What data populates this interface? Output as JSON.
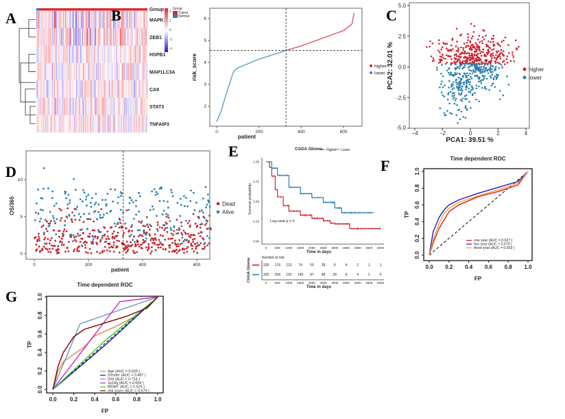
{
  "panels": {
    "A": {
      "label": "A",
      "type": "heatmap",
      "genes": [
        "MAPK1",
        "ZEB1",
        "HSPB1",
        "MAP1LC3A",
        "CA9",
        "STAT3",
        "TNFAIP3"
      ],
      "annotation_label": "Group",
      "legend_title": "Group",
      "legend_items": [
        {
          "name": "Tumor",
          "color": "#e0262b"
        },
        {
          "name": "Normal",
          "color": "#2b7bb5"
        }
      ],
      "colorbar_ticks": [
        "4",
        "2",
        "0",
        "-2",
        "-4"
      ],
      "colors": {
        "high": "#e8262b",
        "mid": "#ffffff",
        "low": "#1b1bd8"
      }
    },
    "B": {
      "label": "B",
      "type": "line",
      "xlabel": "patient",
      "ylabel": "risk_score",
      "xticks": [
        "0",
        "200",
        "400",
        "600"
      ],
      "yticks": [
        "2",
        "3",
        "4",
        "5",
        "6"
      ],
      "xlim": [
        -25,
        680
      ],
      "ylim": [
        1.0,
        6.5
      ],
      "cutoff_x": 328,
      "cutoff_y": 4.55,
      "curve": [
        [
          0,
          1.3
        ],
        [
          20,
          1.75
        ],
        [
          40,
          2.4
        ],
        [
          60,
          3.0
        ],
        [
          80,
          3.6
        ],
        [
          100,
          3.75
        ],
        [
          150,
          3.95
        ],
        [
          200,
          4.15
        ],
        [
          250,
          4.3
        ],
        [
          328,
          4.55
        ],
        [
          400,
          4.75
        ],
        [
          500,
          5.1
        ],
        [
          600,
          5.45
        ],
        [
          640,
          5.75
        ],
        [
          650,
          6.25
        ]
      ],
      "legend": [
        {
          "name": "higher",
          "color": "#c8282e"
        },
        {
          "name": "lower",
          "color": "#2c7fb0"
        }
      ]
    },
    "C": {
      "label": "C",
      "type": "scatter",
      "xlabel": "PCA1: 39.51 %",
      "ylabel": "PCA2: 32.01 %",
      "xticks": [
        "-4",
        "-2",
        "0",
        "2",
        "4"
      ],
      "yticks": [
        "5.0",
        "2.5",
        "0.0",
        "-2.5",
        "-5.0"
      ],
      "xlim": [
        -4.3,
        4.3
      ],
      "ylim": [
        -5,
        5
      ],
      "legend": [
        {
          "name": "higher",
          "color": "#d0202a"
        },
        {
          "name": "lower",
          "color": "#2a7fae"
        }
      ]
    },
    "D": {
      "label": "D",
      "type": "scatter",
      "xlabel": "patient",
      "ylabel": "OS/365",
      "xticks": [
        "0",
        "200",
        "400",
        "600"
      ],
      "yticks": [
        "0",
        "5",
        "10"
      ],
      "xlim": [
        -20,
        680
      ],
      "ylim": [
        -0.5,
        14
      ],
      "cutoff_x": 328,
      "legend": [
        {
          "name": "Dead",
          "color": "#cc2027"
        },
        {
          "name": "Alive",
          "color": "#2a80b0"
        }
      ]
    },
    "E": {
      "label": "E",
      "type": "line",
      "title": "CGGA Glioma",
      "xlabel": "Time in days",
      "ylabel": "Survival probability",
      "xticks": [
        "0",
        "500",
        "1000",
        "1500",
        "2000",
        "2500",
        "3000",
        "3500",
        "4000",
        "4500",
        "5000"
      ],
      "yticks": [
        "0.00",
        "0.25",
        "0.50",
        "0.75",
        "1.00"
      ],
      "xlim": [
        0,
        5000
      ],
      "ylim": [
        0,
        1
      ],
      "annotation": "Log-rank p = 0",
      "series": [
        {
          "name": "Higher",
          "color": "#d0202a",
          "points": [
            [
              0,
              1
            ],
            [
              150,
              0.93
            ],
            [
              250,
              0.82
            ],
            [
              400,
              0.65
            ],
            [
              500,
              0.56
            ],
            [
              750,
              0.45
            ],
            [
              1000,
              0.38
            ],
            [
              1500,
              0.33
            ],
            [
              2000,
              0.29
            ],
            [
              2500,
              0.26
            ],
            [
              2800,
              0.23
            ],
            [
              3000,
              0.22
            ],
            [
              3650,
              0.22
            ],
            [
              3650,
              0.16
            ],
            [
              5000,
              0.16
            ]
          ]
        },
        {
          "name": "Lower",
          "color": "#2c7fb0",
          "points": [
            [
              0,
              1
            ],
            [
              250,
              0.92
            ],
            [
              500,
              0.83
            ],
            [
              1000,
              0.68
            ],
            [
              1500,
              0.6
            ],
            [
              2000,
              0.55
            ],
            [
              2500,
              0.49
            ],
            [
              3000,
              0.42
            ],
            [
              3300,
              0.36
            ],
            [
              4700,
              0.36
            ]
          ]
        }
      ],
      "risk_table": {
        "title": "Number at risk",
        "strata_label": "CGGA Glioma",
        "rows": [
          [
            328,
            176,
            113,
            74,
            53,
            28,
            9,
            4,
            2,
            1,
            1
          ],
          [
            329,
            258,
            192,
            149,
            97,
            68,
            28,
            9,
            4,
            2,
            0
          ]
        ]
      }
    },
    "F": {
      "label": "F",
      "type": "line",
      "title": "Time dependent ROC",
      "xlabel": "FP",
      "ylabel": "TP",
      "xticks": [
        "0.0",
        "0.2",
        "0.4",
        "0.6",
        "0.8",
        "1.0"
      ],
      "yticks": [
        "0.0",
        "0.2",
        "0.4",
        "0.6",
        "0.8",
        "1.0"
      ],
      "series": [
        {
          "name": "one year  (AUC = 0.627 )",
          "color": "#e01a1a",
          "points": [
            [
              0,
              0
            ],
            [
              0.05,
              0.18
            ],
            [
              0.1,
              0.32
            ],
            [
              0.15,
              0.42
            ],
            [
              0.2,
              0.52
            ],
            [
              0.3,
              0.6
            ],
            [
              0.5,
              0.7
            ],
            [
              0.7,
              0.76
            ],
            [
              0.9,
              0.84
            ],
            [
              1,
              1
            ]
          ]
        },
        {
          "name": "two year  (AUC = 0.679 )",
          "color": "#1a1ac0",
          "points": [
            [
              0,
              0
            ],
            [
              0.04,
              0.28
            ],
            [
              0.1,
              0.45
            ],
            [
              0.15,
              0.54
            ],
            [
              0.2,
              0.6
            ],
            [
              0.3,
              0.66
            ],
            [
              0.5,
              0.74
            ],
            [
              0.7,
              0.81
            ],
            [
              0.9,
              0.88
            ],
            [
              1,
              1
            ]
          ]
        },
        {
          "name": "three year  (AUC = 0.653 )",
          "color": "#f0a030",
          "points": [
            [
              0,
              0
            ],
            [
              0.05,
              0.22
            ],
            [
              0.1,
              0.38
            ],
            [
              0.15,
              0.5
            ],
            [
              0.2,
              0.56
            ],
            [
              0.3,
              0.63
            ],
            [
              0.5,
              0.71
            ],
            [
              0.7,
              0.78
            ],
            [
              0.9,
              0.86
            ],
            [
              1,
              1
            ]
          ]
        }
      ]
    },
    "G": {
      "label": "G",
      "type": "line",
      "title": "Time dependent ROC",
      "xlabel": "FP",
      "ylabel": "TP",
      "xticks": [
        "0.0",
        "0.2",
        "0.4",
        "0.6",
        "0.8",
        "1.0"
      ],
      "yticks": [
        "0.0",
        "0.2",
        "0.4",
        "0.6",
        "0.8",
        "1.0"
      ],
      "series": [
        {
          "name": "Age  (AUC = 0.626 )",
          "color": "#e08a3a",
          "points": [
            [
              0,
              0
            ],
            [
              0.05,
              0.2
            ],
            [
              0.1,
              0.3
            ],
            [
              0.2,
              0.38
            ],
            [
              0.3,
              0.46
            ],
            [
              0.4,
              0.58
            ],
            [
              0.6,
              0.68
            ],
            [
              0.8,
              0.8
            ],
            [
              1,
              1
            ]
          ]
        },
        {
          "name": "Gender  (AUC = 0.487 )",
          "color": "#1a1aa0",
          "points": [
            [
              0,
              0
            ],
            [
              0.5,
              0.48
            ],
            [
              1,
              1
            ]
          ]
        },
        {
          "name": "IDH  (AUC = 0.724 )",
          "color": "#6a98b8",
          "points": [
            [
              0,
              0
            ],
            [
              0.26,
              0.71
            ],
            [
              1,
              1
            ]
          ]
        },
        {
          "name": "1p19q  (AUC = 0.654 )",
          "color": "#d020d0",
          "points": [
            [
              0,
              0
            ],
            [
              0.64,
              0.95
            ],
            [
              1,
              1
            ]
          ]
        },
        {
          "name": "MGMT   (AUC = 0.525 )",
          "color": "#30d030",
          "points": [
            [
              0,
              0
            ],
            [
              0.5,
              0.53
            ],
            [
              1,
              1
            ]
          ]
        },
        {
          "name": "risk score  (AUC = 0.679 )",
          "color": "#800000",
          "points": [
            [
              0,
              0
            ],
            [
              0.05,
              0.25
            ],
            [
              0.1,
              0.4
            ],
            [
              0.2,
              0.57
            ],
            [
              0.3,
              0.65
            ],
            [
              0.5,
              0.72
            ],
            [
              0.7,
              0.79
            ],
            [
              0.9,
              0.88
            ],
            [
              1,
              1
            ]
          ]
        }
      ]
    }
  }
}
